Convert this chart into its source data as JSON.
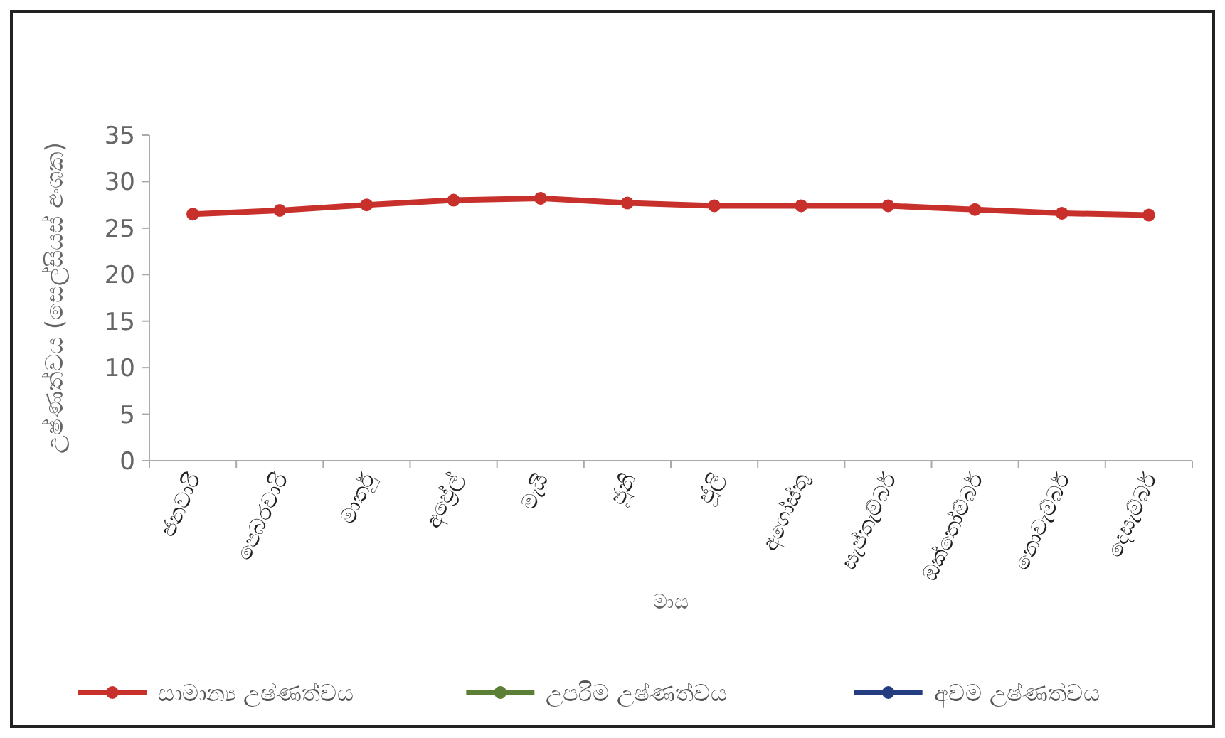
{
  "chart_data": {
    "type": "line",
    "categories": [
      "ජනවාරි",
      "පෙබරවාරි",
      "මාර්තු",
      "අප්‍රේල්",
      "මැයි",
      "ජූනි",
      "ජූලි",
      "අගෝස්තු",
      "සැප්තැම්බර්",
      "ඔක්තෝම්බර්",
      "නොවැම්බර්",
      "දෙසැම්බර්"
    ],
    "xlabel": "මාස",
    "ylabel": "උෂ්ණත්වය (සෙල්සියස් අංශක)",
    "ylim": [
      0,
      35
    ],
    "yticks": [
      0,
      5,
      10,
      15,
      20,
      25,
      30,
      35
    ],
    "series": [
      {
        "name": "සාමාන්‍ය උෂ්ණත්වය",
        "color": "#c8302c",
        "values": [
          26.5,
          26.9,
          27.5,
          28.0,
          28.2,
          27.7,
          27.4,
          27.4,
          27.4,
          27.0,
          26.6,
          26.4
        ]
      },
      {
        "name": "උපරිම උෂ්ණත්වය",
        "color": "#5a7f35",
        "values": [
          null,
          null,
          null,
          null,
          null,
          null,
          null,
          null,
          null,
          null,
          null,
          null
        ]
      },
      {
        "name": "අවම උෂ්ණත්වය",
        "color": "#233d80",
        "values": [
          null,
          null,
          null,
          null,
          null,
          null,
          null,
          null,
          null,
          null,
          null,
          null
        ]
      }
    ],
    "marker": "circle",
    "line_style": "solid",
    "grid": false,
    "legend": "bottom"
  }
}
